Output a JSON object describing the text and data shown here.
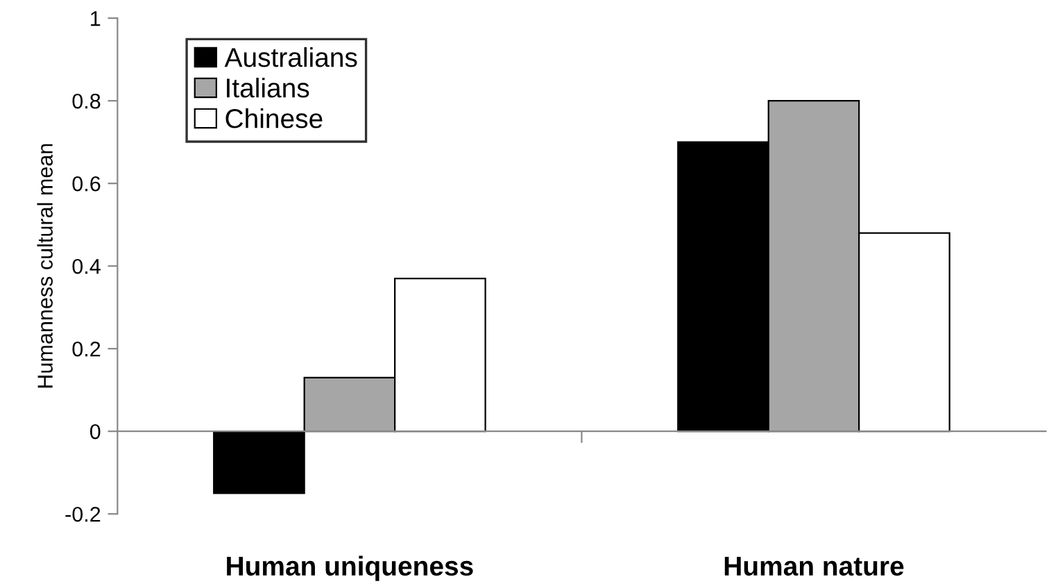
{
  "chart_data": {
    "type": "bar",
    "ylabel": "Humanness cultural mean",
    "categories": [
      "Human uniqueness",
      "Human nature"
    ],
    "series": [
      {
        "name": "Australians",
        "color": "#000000",
        "values": [
          -0.15,
          0.7
        ]
      },
      {
        "name": "Italians",
        "color": "#a6a6a6",
        "values": [
          0.13,
          0.8
        ]
      },
      {
        "name": "Chinese",
        "color": "#ffffff",
        "values": [
          0.37,
          0.48
        ]
      }
    ],
    "ylim": [
      -0.2,
      1
    ],
    "yticks": [
      {
        "value": -0.2,
        "label": "-0.2"
      },
      0,
      0.2,
      0.4,
      0.6,
      0.8,
      1
    ],
    "legend": "top left"
  }
}
